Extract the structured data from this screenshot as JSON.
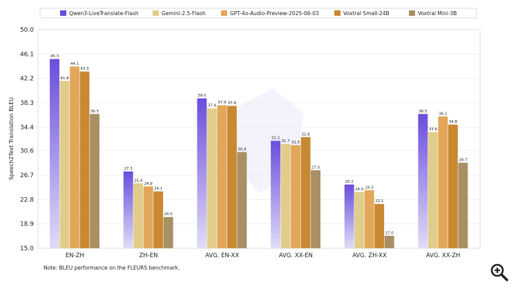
{
  "chart_data": {
    "type": "bar",
    "ylabel": "Speech2Text Translation BLEU",
    "ylim": [
      15.0,
      50.0
    ],
    "yticks": [
      "15.0",
      "18.9",
      "22.8",
      "26.7",
      "30.6",
      "34.4",
      "38.3",
      "42.2",
      "46.1",
      "50.0"
    ],
    "categories": [
      "EN-ZH",
      "ZH-EN",
      "AVG. EN-XX",
      "AVG. XX-EN",
      "AVG. ZH-XX",
      "AVG. XX-ZH"
    ],
    "legend_position": "top",
    "series": [
      {
        "name": "Qwen3-LiveTranslate-Flash",
        "color": "#7052E0",
        "values": [
          45.3,
          27.3,
          39.0,
          32.2,
          25.2,
          36.5
        ],
        "labels": [
          "45.3",
          "27.3",
          "39.0",
          "32.2",
          "25.2",
          "36.5"
        ]
      },
      {
        "name": "Gemini-2.5-Flash",
        "color": "#E2CC8A",
        "values": [
          41.8,
          25.4,
          37.4,
          31.7,
          24.0,
          33.6
        ],
        "labels": [
          "41.8",
          "25.4",
          "37.4",
          "31.7",
          "24.0",
          "33.6"
        ]
      },
      {
        "name": "GPT-4o-Audio-Preview-2025-06-03",
        "color": "#E2A75A",
        "values": [
          44.1,
          24.9,
          37.9,
          31.5,
          24.3,
          36.1
        ],
        "labels": [
          "44.1",
          "24.9",
          "37.9",
          "31.5",
          "24.3",
          "36.1"
        ]
      },
      {
        "name": "Voxtral Small-24B",
        "color": "#C98932",
        "values": [
          43.3,
          24.1,
          37.8,
          32.8,
          22.1,
          34.8
        ],
        "labels": [
          "43.3",
          "24.1",
          "37.8",
          "32.8",
          "22.1",
          "34.8"
        ]
      },
      {
        "name": "Voxtral Mini-3B",
        "color": "#A89064",
        "values": [
          36.5,
          20.0,
          30.4,
          27.5,
          17.0,
          28.7
        ],
        "labels": [
          "36.5",
          "20.0",
          "30.4",
          "27.5",
          "17.0",
          "28.7"
        ]
      }
    ]
  },
  "note": "Note: BLEU performance on the FLEURS benchmark.",
  "zoom_icon": "zoom-in-icon"
}
